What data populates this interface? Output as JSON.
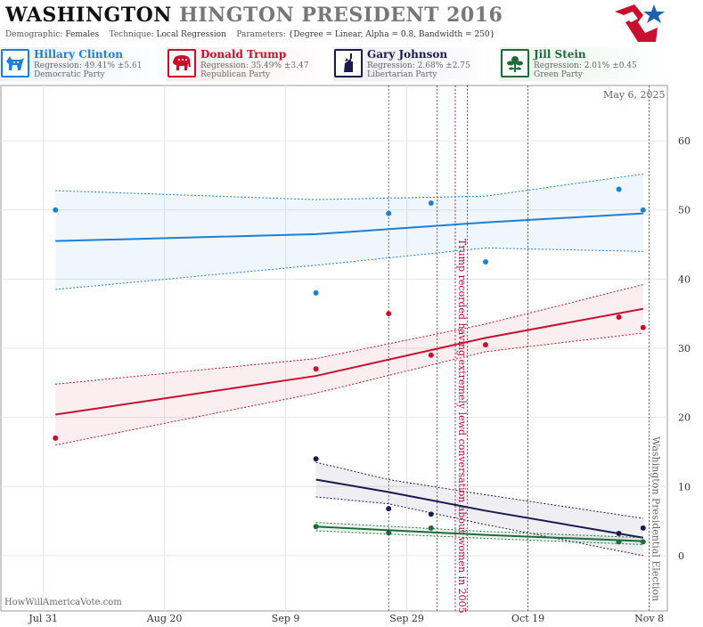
{
  "header": {
    "title_state": "WASHINGTON",
    "title_rest": "HINGTON PRESIDENT 2016",
    "demographic_label": "Demographic:",
    "demographic_value": "Females",
    "technique_label": "Technique:",
    "technique_value": "Local Regression",
    "parameters_label": "Parameters:",
    "parameters_value": "{Degree = Linear, Alpha = 0.8, Bandwidth = 250}"
  },
  "candidates": [
    {
      "name": "Hillary Clinton",
      "regression": "Regression: 49.41% ±5.61",
      "party": "Democratic Party",
      "color": "#1f7fd4",
      "icon": "donkey-icon"
    },
    {
      "name": "Donald Trump",
      "regression": "Regression: 35.49% ±3.47",
      "party": "Republican Party",
      "color": "#c8102e",
      "icon": "elephant-icon"
    },
    {
      "name": "Gary Johnson",
      "regression": "Regression: 2.68% ±2.75",
      "party": "Libertarian Party",
      "color": "#1a1a4e",
      "icon": "liberty-statue-icon"
    },
    {
      "name": "Jill Stein",
      "regression": "Regression: 2.01% ±0.45",
      "party": "Green Party",
      "color": "#1e6b3a",
      "icon": "flower-icon"
    }
  ],
  "date_stamp": "May 6, 2025",
  "credit": "HowWillAmericaVote.com",
  "chart_data": {
    "type": "line",
    "x_axis": {
      "type": "date",
      "ticks": [
        "Jul 31",
        "Aug 20",
        "Sep 9",
        "Sep 29",
        "Oct 19",
        "Nov 8"
      ],
      "range": [
        "2016-07-24",
        "2016-11-11"
      ]
    },
    "y_axis": {
      "range": [
        -8,
        68
      ],
      "ticks": [
        0,
        10,
        20,
        30,
        40,
        50,
        60
      ],
      "position": "right"
    },
    "grid": true,
    "annotations": [
      {
        "label": "Trump recorded having extremely lewd conversation about women in 2005",
        "date": "2016-10-07",
        "color": "#b01040"
      },
      {
        "label": "Washington Presidential Election",
        "date": "2016-11-08",
        "color": "#666666"
      }
    ],
    "event_lines": [
      "2016-09-26",
      "2016-10-04",
      "2016-10-09",
      "2016-10-19",
      "2016-11-08"
    ],
    "series": [
      {
        "name": "Hillary Clinton",
        "color": "#1f7fd4",
        "points": [
          [
            "2016-08-02",
            50
          ],
          [
            "2016-09-14",
            38
          ],
          [
            "2016-09-26",
            49.5
          ],
          [
            "2016-10-03",
            51
          ],
          [
            "2016-10-12",
            42.5
          ],
          [
            "2016-11-03",
            53
          ],
          [
            "2016-11-07",
            50
          ]
        ],
        "trend": [
          [
            "2016-08-02",
            45.5
          ],
          [
            "2016-09-14",
            46.5
          ],
          [
            "2016-10-12",
            48.2
          ],
          [
            "2016-11-07",
            49.5
          ]
        ],
        "band_upper": [
          [
            "2016-08-02",
            52.8
          ],
          [
            "2016-09-14",
            51.5
          ],
          [
            "2016-10-12",
            52
          ],
          [
            "2016-11-07",
            55.2
          ]
        ],
        "band_lower": [
          [
            "2016-08-02",
            38.5
          ],
          [
            "2016-09-14",
            42
          ],
          [
            "2016-10-12",
            44.5
          ],
          [
            "2016-11-07",
            44
          ]
        ]
      },
      {
        "name": "Donald Trump",
        "color": "#c8102e",
        "points": [
          [
            "2016-08-02",
            17
          ],
          [
            "2016-09-14",
            27
          ],
          [
            "2016-09-26",
            35
          ],
          [
            "2016-10-03",
            29
          ],
          [
            "2016-10-12",
            30.5
          ],
          [
            "2016-11-03",
            34.5
          ],
          [
            "2016-11-07",
            33
          ]
        ],
        "trend": [
          [
            "2016-08-02",
            20.4
          ],
          [
            "2016-09-14",
            26
          ],
          [
            "2016-10-12",
            31.5
          ],
          [
            "2016-11-07",
            35.7
          ]
        ],
        "band_upper": [
          [
            "2016-08-02",
            24.8
          ],
          [
            "2016-09-14",
            28.5
          ],
          [
            "2016-10-12",
            33.5
          ],
          [
            "2016-11-07",
            39.2
          ]
        ],
        "band_lower": [
          [
            "2016-08-02",
            16
          ],
          [
            "2016-09-14",
            23.5
          ],
          [
            "2016-10-12",
            29.5
          ],
          [
            "2016-11-07",
            32.2
          ]
        ]
      },
      {
        "name": "Gary Johnson",
        "color": "#1a1a4e",
        "points": [
          [
            "2016-09-14",
            14
          ],
          [
            "2016-09-26",
            6.8
          ],
          [
            "2016-10-03",
            6
          ],
          [
            "2016-11-03",
            3.2
          ],
          [
            "2016-11-07",
            4
          ]
        ],
        "trend": [
          [
            "2016-09-14",
            11
          ],
          [
            "2016-09-26",
            9.2
          ],
          [
            "2016-10-12",
            6.5
          ],
          [
            "2016-11-07",
            2.6
          ]
        ],
        "band_upper": [
          [
            "2016-09-14",
            13.5
          ],
          [
            "2016-09-26",
            11
          ],
          [
            "2016-10-12",
            8.8
          ],
          [
            "2016-11-07",
            5.4
          ]
        ],
        "band_lower": [
          [
            "2016-09-14",
            8.5
          ],
          [
            "2016-09-26",
            7.5
          ],
          [
            "2016-10-12",
            4.5
          ],
          [
            "2016-11-07",
            0
          ]
        ]
      },
      {
        "name": "Jill Stein",
        "color": "#1e6b3a",
        "points": [
          [
            "2016-09-14",
            4.2
          ],
          [
            "2016-09-26",
            3.3
          ],
          [
            "2016-10-03",
            4
          ],
          [
            "2016-11-03",
            2
          ],
          [
            "2016-11-07",
            2
          ]
        ],
        "trend": [
          [
            "2016-09-14",
            4.2
          ],
          [
            "2016-10-12",
            3
          ],
          [
            "2016-11-07",
            2.1
          ]
        ],
        "band_upper": [
          [
            "2016-09-14",
            4.8
          ],
          [
            "2016-10-12",
            3.5
          ],
          [
            "2016-11-07",
            2.6
          ]
        ],
        "band_lower": [
          [
            "2016-09-14",
            3.6
          ],
          [
            "2016-10-12",
            2.5
          ],
          [
            "2016-11-07",
            1.6
          ]
        ]
      }
    ]
  }
}
